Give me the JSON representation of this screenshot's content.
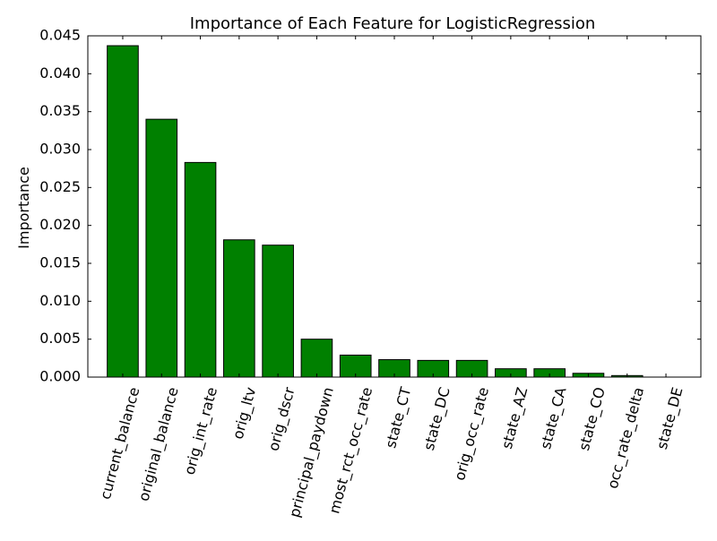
{
  "chart_data": {
    "type": "bar",
    "title": "Importance of Each Feature for LogisticRegression",
    "xlabel": "",
    "ylabel": "Importance",
    "categories": [
      "current_balance",
      "original_balance",
      "orig_int_rate",
      "orig_ltv",
      "orig_dscr",
      "principal_paydown",
      "most_rct_occ_rate",
      "state_CT",
      "state_DC",
      "orig_occ_rate",
      "state_AZ",
      "state_CA",
      "state_CO",
      "occ_rate_delta",
      "state_DE"
    ],
    "values": [
      0.0437,
      0.034,
      0.0283,
      0.0181,
      0.0174,
      0.005,
      0.0029,
      0.0023,
      0.0022,
      0.0022,
      0.0011,
      0.0011,
      0.0005,
      0.0002,
      0.0
    ],
    "ylim": [
      0,
      0.045
    ],
    "yticks": [
      "0.000",
      "0.005",
      "0.010",
      "0.015",
      "0.020",
      "0.025",
      "0.030",
      "0.035",
      "0.040",
      "0.045"
    ],
    "grid": false,
    "legend": "none",
    "bar_color": "#008000",
    "edge_color": "#000000"
  }
}
